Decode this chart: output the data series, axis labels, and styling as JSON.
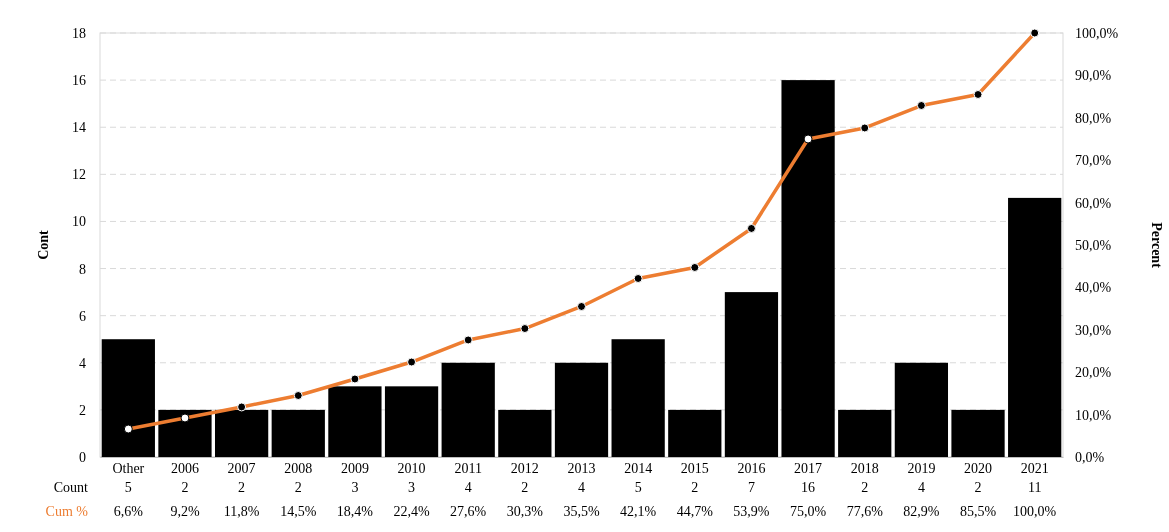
{
  "chart_data": {
    "type": "bar",
    "ylabel": "Cont",
    "y2label": "Percent",
    "categories": [
      "Other",
      "2006",
      "2007",
      "2008",
      "2009",
      "2010",
      "2011",
      "2012",
      "2013",
      "2014",
      "2015",
      "2016",
      "2017",
      "2018",
      "2019",
      "2020",
      "2021"
    ],
    "series": [
      {
        "name": "Count",
        "type": "bar",
        "color": "#000000",
        "values": [
          5,
          2,
          2,
          2,
          3,
          3,
          4,
          2,
          4,
          5,
          2,
          7,
          16,
          2,
          4,
          2,
          11
        ],
        "value_labels": [
          "5",
          "2",
          "2",
          "2",
          "3",
          "3",
          "4",
          "2",
          "4",
          "5",
          "2",
          "7",
          "16",
          "2",
          "4",
          "2",
          "11"
        ]
      },
      {
        "name": "Cum %",
        "type": "line",
        "axis": "y2",
        "color": "#ed7d31",
        "marker": "circle",
        "values": [
          6.6,
          9.2,
          11.8,
          14.5,
          18.4,
          22.4,
          27.6,
          30.3,
          35.5,
          42.1,
          44.7,
          53.9,
          75.0,
          77.6,
          82.9,
          85.5,
          100.0
        ],
        "value_labels": [
          "6,6%",
          "9,2%",
          "11,8%",
          "14,5%",
          "18,4%",
          "22,4%",
          "27,6%",
          "30,3%",
          "35,5%",
          "42,1%",
          "44,7%",
          "53,9%",
          "75,0%",
          "77,6%",
          "82,9%",
          "85,5%",
          "100,0%"
        ]
      }
    ],
    "ylim": [
      0,
      18
    ],
    "yticks": [
      0,
      2,
      4,
      6,
      8,
      10,
      12,
      14,
      16,
      18
    ],
    "y2lim": [
      0,
      100
    ],
    "y2ticks": [
      {
        "value": 0,
        "label": "0,0%"
      },
      {
        "value": 10,
        "label": "10,0%"
      },
      {
        "value": 20,
        "label": "20,0%"
      },
      {
        "value": 30,
        "label": "30,0%"
      },
      {
        "value": 40,
        "label": "40,0%"
      },
      {
        "value": 50,
        "label": "50,0%"
      },
      {
        "value": 60,
        "label": "60,0%"
      },
      {
        "value": 70,
        "label": "70,0%"
      },
      {
        "value": 80,
        "label": "80,0%"
      },
      {
        "value": 90,
        "label": "90,0%"
      },
      {
        "value": 100,
        "label": "100,0%"
      }
    ],
    "grid": "y",
    "legend": false
  }
}
